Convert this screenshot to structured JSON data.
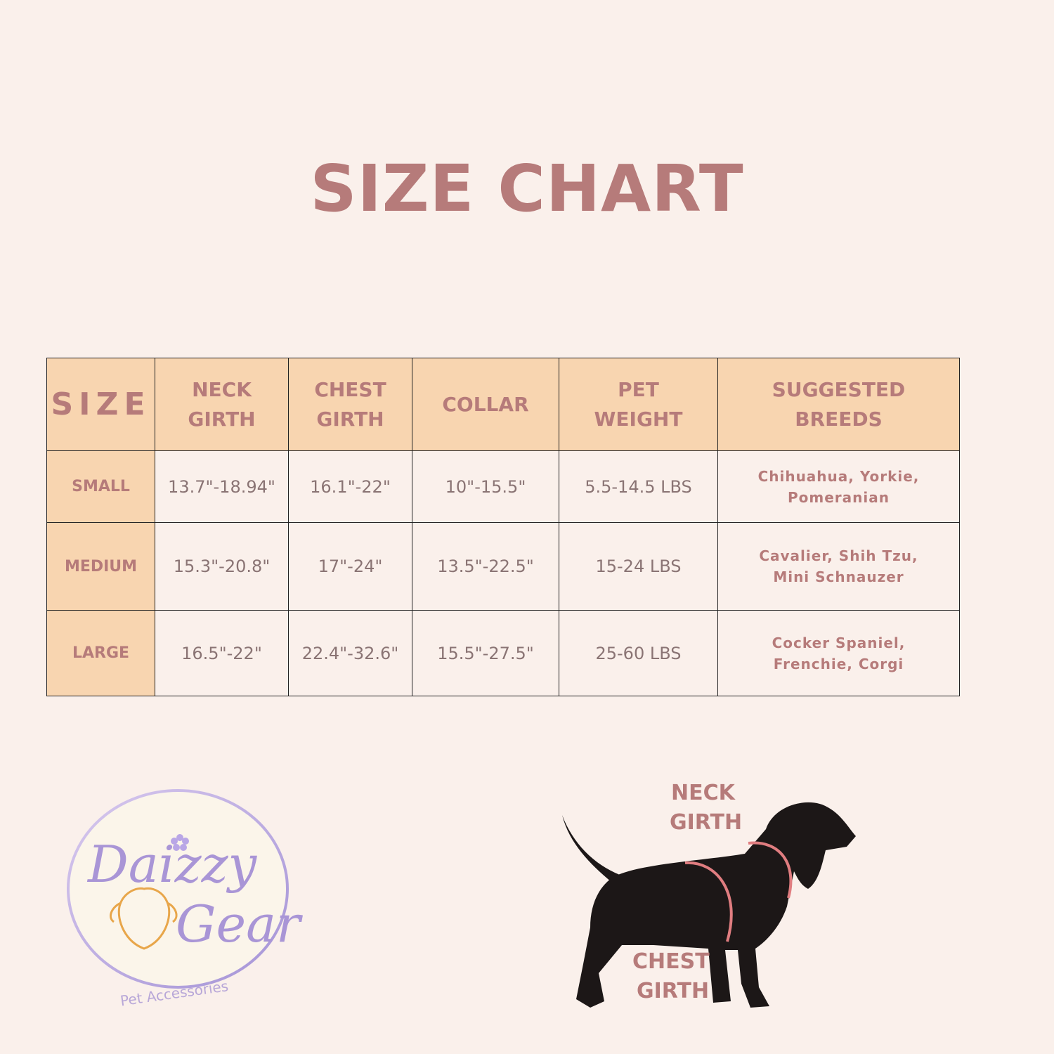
{
  "title": "SIZE CHART",
  "table": {
    "headers": [
      [
        "SIZE"
      ],
      [
        "NECK",
        "GIRTH"
      ],
      [
        "CHEST",
        "GIRTH"
      ],
      [
        "COLLAR"
      ],
      [
        "PET",
        "WEIGHT"
      ],
      [
        "SUGGESTED",
        "BREEDS"
      ]
    ],
    "rows": [
      [
        "SMALL",
        "13.7\"-18.94\"",
        "16.1\"-22\"",
        "10\"-15.5\"",
        "5.5-14.5 LBS",
        [
          "Chihuahua, Yorkie,",
          "Pomeranian"
        ]
      ],
      [
        "MEDIUM",
        "15.3\"-20.8\"",
        "17\"-24\"",
        "13.5\"-22.5\"",
        "15-24 LBS",
        [
          "Cavalier, Shih Tzu,",
          "Mini Schnauzer"
        ]
      ],
      [
        "LARGE",
        "16.5\"-22\"",
        "22.4\"-32.6\"",
        "15.5\"-27.5\"",
        "25-60 LBS",
        [
          "Cocker Spaniel,",
          "Frenchie, Corgi"
        ]
      ]
    ]
  },
  "logo": {
    "line1": "Daizzy",
    "line2": "Gear",
    "tagline": "Pet Accessories"
  },
  "diagram": {
    "neck_label": [
      "NECK",
      "GIRTH"
    ],
    "chest_label": [
      "CHEST",
      "GIRTH"
    ]
  }
}
